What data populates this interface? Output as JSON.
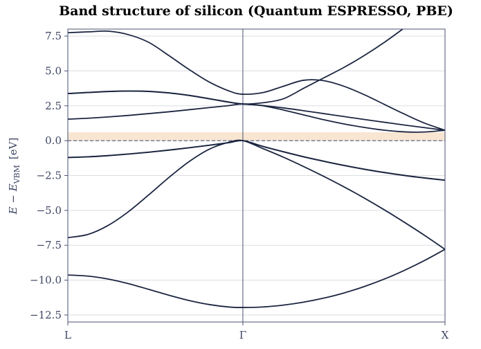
{
  "chart_data": {
    "type": "line",
    "title": "Band structure of silicon (Quantum ESPRESSO, PBE)",
    "ylabel": "E − E",
    "ylabel_sub": "VBM",
    "ylabel_unit": "[eV]",
    "x": [
      0,
      0.1,
      0.2,
      0.3,
      0.4,
      0.5,
      0.6,
      0.7,
      0.8,
      0.866,
      0.966,
      1.066,
      1.166,
      1.266,
      1.366,
      1.466,
      1.566,
      1.666,
      1.766,
      1.866
    ],
    "xlim": [
      0,
      1.866
    ],
    "xticks": [
      {
        "value": 0,
        "label": "L"
      },
      {
        "value": 0.866,
        "label": "Γ"
      },
      {
        "value": 1.866,
        "label": "X"
      }
    ],
    "ylim": [
      -13,
      8
    ],
    "yticks": [
      {
        "value": -12.5,
        "label": "−12.5"
      },
      {
        "value": -10,
        "label": "−10.0"
      },
      {
        "value": -7.5,
        "label": "−7.5"
      },
      {
        "value": -5,
        "label": "−5.0"
      },
      {
        "value": -2.5,
        "label": "−2.5"
      },
      {
        "value": 0,
        "label": "0.0"
      },
      2.5,
      {
        "value": 5,
        "label": "5.0"
      },
      7.5
    ],
    "grid": true,
    "gap_band": [
      0,
      0.6
    ],
    "gap_color": "#f8e6d2",
    "hline": 0,
    "series": [
      {
        "color": "#1b2540",
        "values": [
          -9.63,
          -9.71,
          -9.92,
          -10.25,
          -10.66,
          -11.08,
          -11.46,
          -11.75,
          -11.93,
          -11.96,
          -11.92,
          -11.79,
          -11.58,
          -11.29,
          -10.92,
          -10.46,
          -9.92,
          -9.29,
          -8.58,
          -7.79
        ]
      },
      {
        "color": "#1b2540",
        "values": [
          -6.95,
          -6.72,
          -6.07,
          -5.09,
          -3.89,
          -2.64,
          -1.5,
          -0.61,
          -0.1,
          0,
          -0.57,
          -1.18,
          -1.85,
          -2.56,
          -3.31,
          -4.11,
          -4.96,
          -5.86,
          -6.8,
          -7.79
        ]
      },
      {
        "color": "#1b2540",
        "values": [
          -1.2,
          -1.153,
          -1.067,
          -0.955,
          -0.823,
          -0.673,
          -0.508,
          -0.328,
          -0.134,
          0,
          -0.41,
          -0.79,
          -1.15,
          -1.47,
          -1.77,
          -2.04,
          -2.28,
          -2.49,
          -2.67,
          -2.83
        ]
      },
      {
        "color": "#1b2540",
        "values": [
          -1.21,
          -1.16,
          -1.075,
          -0.96,
          -0.83,
          -0.68,
          -0.51,
          -0.33,
          -0.135,
          0,
          -0.42,
          -0.8,
          -1.16,
          -1.48,
          -1.78,
          -2.05,
          -2.29,
          -2.5,
          -2.68,
          -2.84
        ]
      },
      {
        "color": "#1b2540",
        "values": [
          1.54,
          1.61,
          1.7,
          1.81,
          1.94,
          2.07,
          2.22,
          2.37,
          2.52,
          2.63,
          2.5,
          2.2,
          1.85,
          1.5,
          1.2,
          0.95,
          0.75,
          0.63,
          0.62,
          0.75
        ]
      },
      {
        "color": "#1b2540",
        "values": [
          3.37,
          3.45,
          3.52,
          3.55,
          3.53,
          3.42,
          3.24,
          3.0,
          2.75,
          2.63,
          2.52,
          2.35,
          2.15,
          1.94,
          1.73,
          1.52,
          1.32,
          1.12,
          0.93,
          0.75
        ]
      },
      {
        "color": "#1b2540",
        "values": [
          3.38,
          3.46,
          3.53,
          3.56,
          3.54,
          3.43,
          3.25,
          3.01,
          2.76,
          2.63,
          2.72,
          3.0,
          3.75,
          4.5,
          5.25,
          6.1,
          7.05,
          8.1,
          null,
          null
        ]
      },
      {
        "color": "#1b2540",
        "values": [
          7.74,
          7.8,
          7.85,
          7.6,
          7.05,
          6.1,
          5.1,
          4.2,
          3.55,
          3.33,
          3.45,
          3.9,
          4.33,
          4.3,
          3.9,
          3.3,
          2.6,
          1.9,
          1.25,
          0.75
        ]
      }
    ]
  }
}
